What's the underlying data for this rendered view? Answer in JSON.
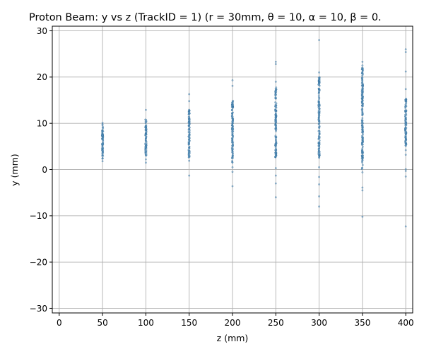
{
  "chart_data": {
    "type": "scatter",
    "title": "Proton Beam: y vs z (TrackID = 1) (r = 30mm, θ = 10, α = 10, β = 0.",
    "xlabel": "z (mm)",
    "ylabel": "y (mm)",
    "xlim": [
      -8,
      408
    ],
    "ylim": [
      -31,
      31
    ],
    "xticks": [
      0,
      50,
      100,
      150,
      200,
      250,
      300,
      350,
      400
    ],
    "yticks": [
      -30,
      -20,
      -10,
      0,
      10,
      20,
      30
    ],
    "ytick_labels": [
      "−30",
      "−20",
      "−10",
      "0",
      "10",
      "20",
      "30"
    ],
    "grid": true,
    "legend": "none",
    "point_color": "#1f77b4",
    "clusters": [
      {
        "z": 50,
        "band": [
          2.3,
          9.8
        ],
        "outliers": [
          1.8,
          10.1
        ]
      },
      {
        "z": 100,
        "band": [
          2.8,
          11.0
        ],
        "outliers": [
          2.2,
          12.9,
          1.5
        ]
      },
      {
        "z": 150,
        "band": [
          2.5,
          13.0
        ],
        "outliers": [
          -1.3,
          14.8,
          16.3,
          1.9
        ]
      },
      {
        "z": 200,
        "band": [
          1.5,
          15.0
        ],
        "outliers": [
          -3.6,
          19.3,
          18.1,
          -0.5,
          0.5
        ]
      },
      {
        "z": 250,
        "band": [
          2.5,
          17.8
        ],
        "outliers": [
          -6.0,
          -3.0,
          -1.3,
          22.8,
          23.3,
          0.3,
          19.0
        ]
      },
      {
        "z": 300,
        "band": [
          2.5,
          20.5
        ],
        "outliers": [
          -8.0,
          -5.8,
          -3.2,
          -1.6,
          28.0,
          0.5,
          21.0
        ]
      },
      {
        "z": 350,
        "band": [
          0.0,
          22.0
        ],
        "outliers": [
          -10.2,
          -4.5,
          -3.9,
          -0.6,
          23.3,
          22.5
        ]
      },
      {
        "z": 400,
        "band": [
          5.0,
          15.5
        ],
        "outliers": [
          -12.3,
          -1.5,
          -0.3,
          0.1,
          3.2,
          4.2,
          17.4,
          21.2,
          25.4,
          26.0
        ]
      }
    ]
  }
}
